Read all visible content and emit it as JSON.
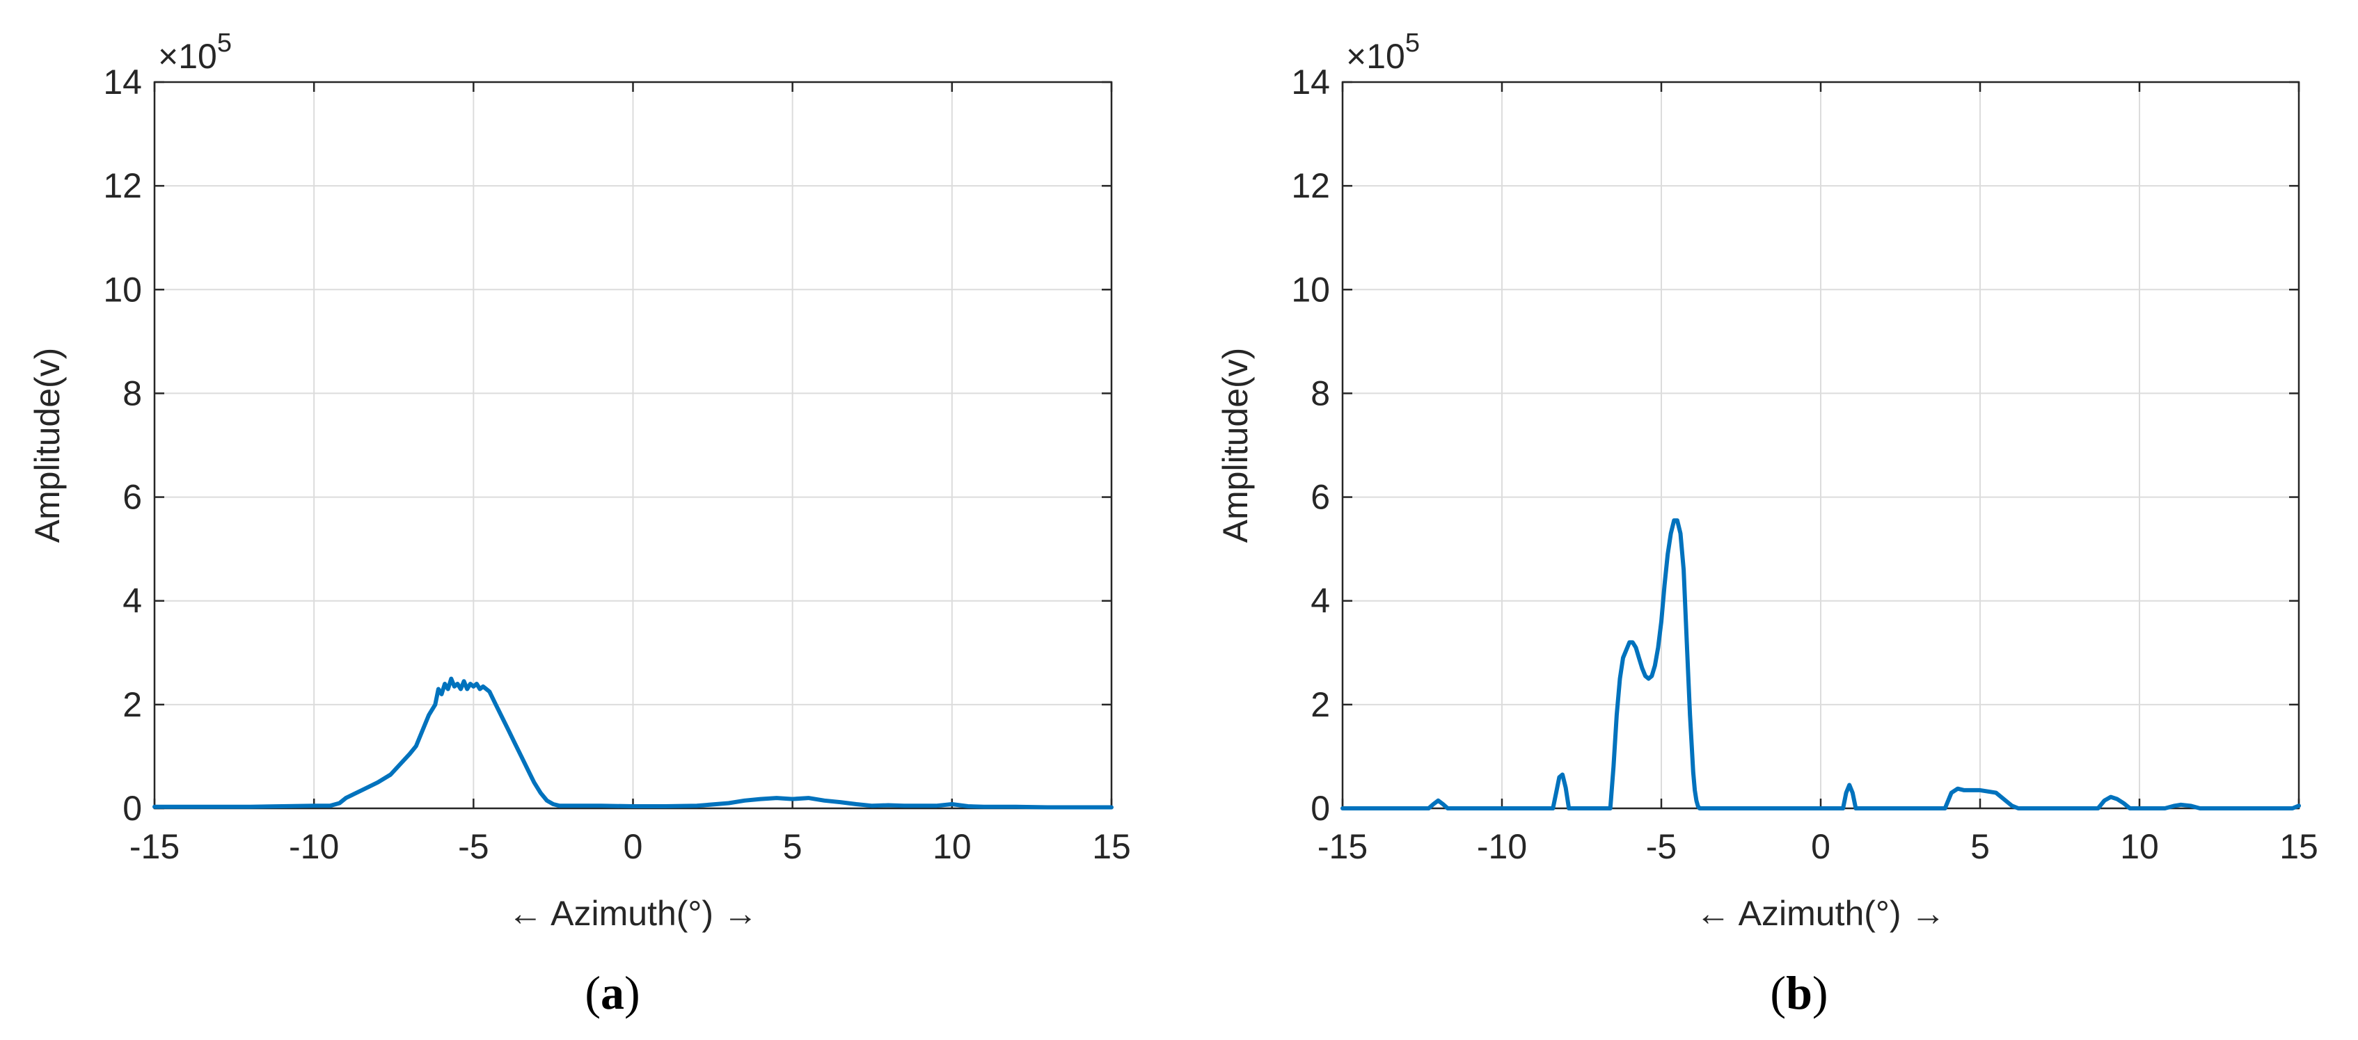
{
  "colors": {
    "series": "#0072BD",
    "axis": "#262626",
    "grid": "#dcdcdc"
  },
  "chart_data": [
    {
      "type": "line",
      "caption": "(a)",
      "caption_letter": "a",
      "xlabel": "← Azimuth(°) →",
      "ylabel": "Amplitude(v)",
      "y_exponent": "×10",
      "y_exponent_power": "5",
      "xlim": [
        -15,
        15
      ],
      "ylim": [
        0,
        14
      ],
      "xticks": [
        -15,
        -10,
        -5,
        0,
        5,
        10,
        15
      ],
      "yticks": [
        0,
        2,
        4,
        6,
        8,
        10,
        12,
        14
      ],
      "grid": true,
      "series": [
        {
          "x": [
            -15,
            -14,
            -13,
            -12,
            -11,
            -10,
            -9.5,
            -9.2,
            -9,
            -8.5,
            -8,
            -7.6,
            -7.3,
            -7,
            -6.8,
            -6.6,
            -6.4,
            -6.2,
            -6.1,
            -6.0,
            -5.9,
            -5.8,
            -5.7,
            -5.6,
            -5.5,
            -5.4,
            -5.3,
            -5.2,
            -5.1,
            -5.0,
            -4.9,
            -4.8,
            -4.7,
            -4.6,
            -4.5,
            -4.3,
            -4.1,
            -3.9,
            -3.7,
            -3.5,
            -3.3,
            -3.1,
            -2.9,
            -2.7,
            -2.5,
            -2.3,
            -2.1,
            -1.9,
            -1.5,
            -1,
            0,
            1,
            2,
            3,
            3.5,
            4,
            4.5,
            5,
            5.5,
            6,
            6.5,
            7,
            7.5,
            8,
            8.5,
            9,
            9.5,
            10,
            10.5,
            11,
            12,
            13,
            14,
            15
          ],
          "y": [
            0.03,
            0.03,
            0.03,
            0.03,
            0.04,
            0.05,
            0.05,
            0.1,
            0.2,
            0.35,
            0.5,
            0.65,
            0.85,
            1.05,
            1.2,
            1.5,
            1.8,
            2.0,
            2.3,
            2.2,
            2.4,
            2.3,
            2.5,
            2.35,
            2.4,
            2.3,
            2.45,
            2.3,
            2.4,
            2.35,
            2.4,
            2.3,
            2.35,
            2.3,
            2.25,
            2.0,
            1.75,
            1.5,
            1.25,
            1.0,
            0.75,
            0.5,
            0.3,
            0.15,
            0.08,
            0.05,
            0.05,
            0.05,
            0.05,
            0.05,
            0.04,
            0.04,
            0.05,
            0.1,
            0.15,
            0.18,
            0.2,
            0.18,
            0.2,
            0.15,
            0.12,
            0.08,
            0.05,
            0.06,
            0.05,
            0.05,
            0.05,
            0.08,
            0.04,
            0.03,
            0.03,
            0.02,
            0.02,
            0.02
          ]
        }
      ]
    },
    {
      "type": "line",
      "caption": "(b)",
      "caption_letter": "b",
      "xlabel": "← Azimuth(°) →",
      "ylabel": "Amplitude(v)",
      "y_exponent": "×10",
      "y_exponent_power": "5",
      "xlim": [
        -15,
        15
      ],
      "ylim": [
        0,
        14
      ],
      "xticks": [
        -15,
        -10,
        -5,
        0,
        5,
        10,
        15
      ],
      "yticks": [
        0,
        2,
        4,
        6,
        8,
        10,
        12,
        14
      ],
      "grid": true,
      "series": [
        {
          "x": [
            -15,
            -12.3,
            -12.15,
            -12.0,
            -11.85,
            -11.7,
            -8.4,
            -8.3,
            -8.2,
            -8.1,
            -8.0,
            -7.9,
            -6.6,
            -6.5,
            -6.4,
            -6.3,
            -6.2,
            -6.0,
            -5.9,
            -5.8,
            -5.7,
            -5.6,
            -5.5,
            -5.4,
            -5.3,
            -5.2,
            -5.1,
            -5.0,
            -4.9,
            -4.8,
            -4.7,
            -4.6,
            -4.5,
            -4.4,
            -4.3,
            -4.2,
            -4.1,
            -4.0,
            -3.95,
            -3.9,
            -3.85,
            -3.8,
            0.7,
            0.8,
            0.9,
            1.0,
            1.1,
            3.9,
            4.1,
            4.3,
            4.5,
            5.0,
            5.5,
            5.8,
            6.0,
            6.2,
            8.7,
            8.9,
            9.1,
            9.3,
            9.5,
            9.7,
            10.8,
            11.1,
            11.3,
            11.6,
            11.9,
            12.5,
            14.8,
            15
          ],
          "y": [
            0,
            0,
            0.08,
            0.15,
            0.08,
            0,
            0,
            0.3,
            0.6,
            0.65,
            0.4,
            0,
            0,
            0.8,
            1.8,
            2.5,
            2.9,
            3.2,
            3.2,
            3.1,
            2.9,
            2.7,
            2.55,
            2.5,
            2.55,
            2.75,
            3.1,
            3.6,
            4.3,
            4.9,
            5.3,
            5.55,
            5.55,
            5.3,
            4.6,
            3.2,
            1.8,
            0.7,
            0.35,
            0.15,
            0.04,
            0,
            0,
            0.3,
            0.45,
            0.3,
            0,
            0,
            0.3,
            0.38,
            0.35,
            0.35,
            0.3,
            0.15,
            0.05,
            0,
            0,
            0.15,
            0.22,
            0.18,
            0.1,
            0,
            0,
            0.05,
            0.07,
            0.05,
            0,
            0,
            0,
            0.05
          ]
        }
      ]
    }
  ]
}
